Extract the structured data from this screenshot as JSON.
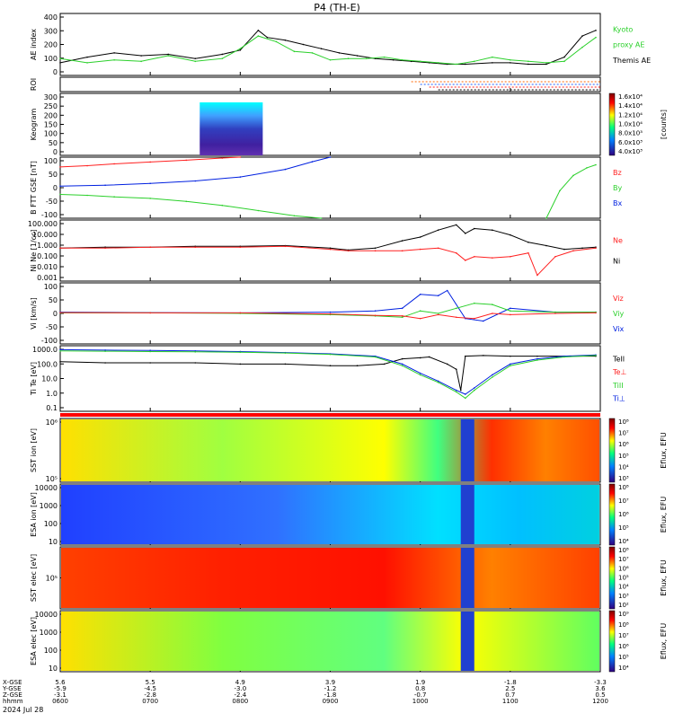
{
  "title": "P4  (TH-E)",
  "chart_data": {
    "type": "line",
    "title": "P4  (TH-E)",
    "x_ticks": [
      "0600",
      "0700",
      "0800",
      "0900",
      "1000",
      "1100",
      "1200"
    ],
    "date_label": "2024 Jul 28",
    "orbit_labels": [
      "X-GSE",
      "Y-GSE",
      "Z-GSE",
      "hhmm"
    ],
    "orbit_table": [
      {
        "time": "0600",
        "x": "5.6",
        "y": "-5.9",
        "z": "-3.1"
      },
      {
        "time": "0700",
        "x": "5.5",
        "y": "-4.5",
        "z": "-2.8"
      },
      {
        "time": "0800",
        "x": "4.9",
        "y": "-3.0",
        "z": "-2.4"
      },
      {
        "time": "0900",
        "x": "3.9",
        "y": "-1.2",
        "z": "-1.8"
      },
      {
        "time": "1000",
        "x": "1.9",
        "y": "0.8",
        "z": "-0.7"
      },
      {
        "time": "1100",
        "x": "-1.8",
        "y": "2.5",
        "z": "0.7"
      },
      {
        "time": "1200",
        "x": "-3.3",
        "y": "3.6",
        "z": "0.5"
      }
    ],
    "panels": [
      {
        "id": "ae",
        "ylabel": "AE index",
        "yticks": [
          "400",
          "300",
          "200",
          "100",
          "0"
        ],
        "ylim": [
          -20,
          420
        ],
        "legend": [
          {
            "label": "Kyoto",
            "color": "#2bd02b"
          },
          {
            "label": "proxy AE",
            "color": "#2bd02b"
          },
          {
            "label": "Themis AE",
            "color": "#000000"
          }
        ],
        "series": [
          {
            "name": "Themis AE",
            "color": "#000000",
            "x": [
              6.0,
              6.3,
              6.6,
              6.9,
              7.2,
              7.5,
              7.8,
              8.0,
              8.2,
              8.3,
              8.5,
              8.7,
              8.9,
              9.1,
              9.3,
              9.5,
              9.7,
              9.9,
              10.1,
              10.3,
              10.5,
              10.8,
              11.0,
              11.2,
              11.4,
              11.6,
              11.8,
              11.95
            ],
            "y": [
              70,
              110,
              140,
              120,
              130,
              100,
              130,
              160,
              300,
              250,
              230,
              200,
              170,
              140,
              120,
              100,
              90,
              80,
              70,
              60,
              60,
              70,
              70,
              60,
              60,
              110,
              260,
              300
            ]
          },
          {
            "name": "Kyoto proxy AE",
            "color": "#2bd02b",
            "x": [
              6.0,
              6.3,
              6.6,
              6.9,
              7.2,
              7.5,
              7.8,
              8.0,
              8.2,
              8.4,
              8.6,
              8.8,
              9.0,
              9.2,
              9.4,
              9.6,
              9.8,
              10.0,
              10.2,
              10.4,
              10.6,
              10.8,
              11.0,
              11.2,
              11.4,
              11.6,
              11.8,
              11.95
            ],
            "y": [
              100,
              70,
              90,
              80,
              120,
              80,
              100,
              170,
              260,
              220,
              150,
              140,
              90,
              100,
              100,
              110,
              90,
              80,
              70,
              60,
              80,
              110,
              90,
              80,
              70,
              80,
              180,
              250
            ]
          }
        ]
      },
      {
        "id": "roi",
        "ylabel": "ROI"
      },
      {
        "id": "keogram",
        "ylabel": "Keogram",
        "yticks": [
          "300",
          "250",
          "200",
          "150",
          "100",
          "50",
          "0"
        ],
        "ylim": [
          0,
          300
        ],
        "colorbar": {
          "label": "[counts]",
          "ticks": [
            "1.6x10⁴",
            "1.4x10⁴",
            "1.2x10⁴",
            "1.0x10⁴",
            "8.0x10³",
            "6.0x10³",
            "4.0x10³"
          ]
        }
      },
      {
        "id": "bfield",
        "ylabel": "B FTT GSE [nT]",
        "yticks": [
          "100",
          "50",
          "0",
          "-50",
          "-100"
        ],
        "ylim": [
          -100,
          100
        ],
        "legend": [
          {
            "label": "Bz",
            "color": "#ff2020"
          },
          {
            "label": "By",
            "color": "#2bd02b"
          },
          {
            "label": "Bx",
            "color": "#0020e0"
          }
        ],
        "series": [
          {
            "name": "Bz",
            "color": "#ff2020",
            "x": [
              6.0,
              6.3,
              6.6,
              7.0,
              7.4,
              7.8,
              8.0
            ],
            "y": [
              68,
              72,
              78,
              84,
              90,
              97,
              100
            ]
          },
          {
            "name": "By",
            "color": "#2bd02b",
            "x": [
              6.0,
              6.3,
              6.6,
              7.0,
              7.4,
              7.8,
              8.2,
              8.6,
              8.9
            ],
            "y": [
              -22,
              -25,
              -30,
              -35,
              -45,
              -58,
              -75,
              -92,
              -100
            ]
          },
          {
            "name": "Bx",
            "color": "#0020e0",
            "x": [
              6.0,
              6.5,
              7.0,
              7.5,
              8.0,
              8.5,
              8.8,
              9.0
            ],
            "y": [
              5,
              8,
              14,
              22,
              35,
              60,
              85,
              100
            ]
          },
          {
            "name": "By-late",
            "color": "#2bd02b",
            "x": [
              11.4,
              11.55,
              11.7,
              11.85,
              11.95
            ],
            "y": [
              -100,
              -10,
              40,
              65,
              75
            ]
          }
        ]
      },
      {
        "id": "density",
        "ylabel": "Ni Ne [1/cc]",
        "yticks": [
          "100.000",
          "10.000",
          "1.000",
          "0.100",
          "0.010",
          "0.001"
        ],
        "scale": "log",
        "ylim": [
          0.001,
          100
        ],
        "legend": [
          {
            "label": "Ne",
            "color": "#ff2020"
          },
          {
            "label": "Ni",
            "color": "#000000"
          }
        ],
        "series": [
          {
            "name": "Ni",
            "color": "#000000",
            "x": [
              6.0,
              6.5,
              7.0,
              7.5,
              8.0,
              8.5,
              9.0,
              9.2,
              9.5,
              9.8,
              10.0,
              10.2,
              10.4,
              10.5,
              10.6,
              10.8,
              11.0,
              11.2,
              11.4,
              11.6,
              11.8,
              11.95
            ],
            "y": [
              0.5,
              0.6,
              0.6,
              0.7,
              0.7,
              0.8,
              0.5,
              0.35,
              0.5,
              2,
              4,
              15,
              40,
              8,
              20,
              15,
              6,
              1.5,
              0.8,
              0.4,
              0.5,
              0.6
            ]
          },
          {
            "name": "Ne",
            "color": "#ff2020",
            "x": [
              6.0,
              6.5,
              7.0,
              7.5,
              8.0,
              8.5,
              9.0,
              9.2,
              9.5,
              9.8,
              10.0,
              10.2,
              10.4,
              10.5,
              10.6,
              10.8,
              11.0,
              11.2,
              11.3,
              11.5,
              11.7,
              11.95
            ],
            "y": [
              0.5,
              0.5,
              0.6,
              0.6,
              0.6,
              0.7,
              0.4,
              0.3,
              0.3,
              0.3,
              0.4,
              0.5,
              0.2,
              0.05,
              0.1,
              0.08,
              0.1,
              0.2,
              0.003,
              0.1,
              0.3,
              0.5
            ]
          }
        ]
      },
      {
        "id": "velocity",
        "ylabel": "Vi [km/s]",
        "yticks": [
          "100",
          "50",
          "0",
          "-50",
          "-100"
        ],
        "ylim": [
          -120,
          120
        ],
        "legend": [
          {
            "label": "Viz",
            "color": "#ff2020"
          },
          {
            "label": "Viy",
            "color": "#2bd02b"
          },
          {
            "label": "Vix",
            "color": "#0020e0"
          }
        ],
        "series": [
          {
            "name": "Vix",
            "color": "#0020e0",
            "x": [
              6.0,
              7.0,
              8.0,
              9.0,
              9.5,
              9.8,
              10.0,
              10.2,
              10.3,
              10.5,
              10.7,
              11.0,
              11.5,
              11.95
            ],
            "y": [
              5,
              3,
              2,
              5,
              10,
              20,
              75,
              70,
              90,
              -20,
              -30,
              20,
              5,
              5
            ]
          },
          {
            "name": "Viy",
            "color": "#2bd02b",
            "x": [
              6.0,
              7.0,
              8.0,
              9.0,
              9.5,
              9.8,
              10.0,
              10.2,
              10.4,
              10.6,
              10.8,
              11.0,
              11.5,
              11.95
            ],
            "y": [
              2,
              2,
              0,
              -5,
              -10,
              -15,
              10,
              0,
              20,
              40,
              35,
              10,
              5,
              5
            ]
          },
          {
            "name": "Viz",
            "color": "#ff2020",
            "x": [
              6.0,
              7.0,
              8.0,
              9.0,
              9.5,
              9.8,
              10.0,
              10.2,
              10.4,
              10.6,
              10.8,
              11.0,
              11.5,
              11.95
            ],
            "y": [
              3,
              2,
              2,
              -2,
              -8,
              -10,
              -20,
              -5,
              -15,
              -20,
              0,
              -5,
              0,
              2
            ]
          }
        ]
      },
      {
        "id": "temperature",
        "ylabel": "Ti Te [eV]",
        "yticks": [
          "1000.0",
          "100.0",
          "10.0",
          "1.0",
          "0.1"
        ],
        "scale": "log",
        "ylim": [
          0.05,
          5000
        ],
        "legend": [
          {
            "label": "TeII",
            "color": "#000000"
          },
          {
            "label": "Te⊥",
            "color": "#ff2020"
          },
          {
            "label": "TiII",
            "color": "#2bd02b"
          },
          {
            "label": "Ti⊥",
            "color": "#0020e0"
          }
        ],
        "series": [
          {
            "name": "Te",
            "color": "#000000",
            "x": [
              6.0,
              6.5,
              7.0,
              7.5,
              8.0,
              8.5,
              9.0,
              9.3,
              9.6,
              9.8,
              10.0,
              10.1,
              10.3,
              10.4,
              10.45,
              10.5,
              10.7,
              11.0,
              11.3,
              11.6,
              11.95
            ],
            "y": [
              300,
              250,
              250,
              250,
              200,
              200,
              150,
              150,
              200,
              500,
              600,
              700,
              200,
              80,
              2,
              800,
              900,
              800,
              800,
              800,
              800
            ]
          },
          {
            "name": "Ti⊥",
            "color": "#0020e0",
            "x": [
              6.0,
              6.5,
              7.0,
              7.5,
              8.0,
              8.5,
              9.0,
              9.5,
              9.8,
              10.0,
              10.2,
              10.4,
              10.5,
              10.6,
              10.8,
              11.0,
              11.3,
              11.6,
              11.95
            ],
            "y": [
              2500,
              2300,
              2200,
              2000,
              1800,
              1500,
              1200,
              800,
              200,
              40,
              10,
              2,
              1,
              3,
              30,
              200,
              500,
              800,
              1000
            ]
          },
          {
            "name": "TiII",
            "color": "#2bd02b",
            "x": [
              6.0,
              6.5,
              7.0,
              7.5,
              8.0,
              8.5,
              9.0,
              9.5,
              9.8,
              10.0,
              10.2,
              10.4,
              10.5,
              10.6,
              10.8,
              11.0,
              11.3,
              11.6,
              11.95
            ],
            "y": [
              2000,
              1900,
              1800,
              1700,
              1600,
              1400,
              1100,
              700,
              150,
              30,
              8,
              1.5,
              0.5,
              2,
              20,
              150,
              400,
              700,
              900
            ]
          }
        ]
      },
      {
        "id": "sst_ion",
        "ylabel": "SST ion [eV]",
        "yticks": [
          "10⁶",
          "10⁵"
        ],
        "colorbar": {
          "label": "Eflux, EFU",
          "ticks": [
            "10⁸",
            "10⁷",
            "10⁶",
            "10⁵",
            "10⁴",
            "10³"
          ]
        }
      },
      {
        "id": "esa_ion",
        "ylabel": "ESA ion [eV]",
        "yticks": [
          "10000",
          "1000",
          "100",
          "10"
        ],
        "colorbar": {
          "label": "Eflux, EFU",
          "ticks": [
            "10⁸",
            "10⁷",
            "10⁶",
            "10⁵",
            "10⁴"
          ]
        }
      },
      {
        "id": "sst_elec",
        "ylabel": "SST elec [eV]",
        "yticks": [
          "10⁵"
        ],
        "colorbar": {
          "label": "Eflux, EFU",
          "ticks": [
            "10⁸",
            "10⁷",
            "10⁶",
            "10⁵",
            "10⁴",
            "10³",
            "10²"
          ]
        }
      },
      {
        "id": "esa_elec",
        "ylabel": "ESA elec [eV]",
        "yticks": [
          "10000",
          "1000",
          "100",
          "10"
        ],
        "colorbar": {
          "label": "Eflux, EFU",
          "ticks": [
            "10⁹",
            "10⁸",
            "10⁷",
            "10⁶",
            "10⁵",
            "10⁴"
          ]
        }
      }
    ]
  }
}
